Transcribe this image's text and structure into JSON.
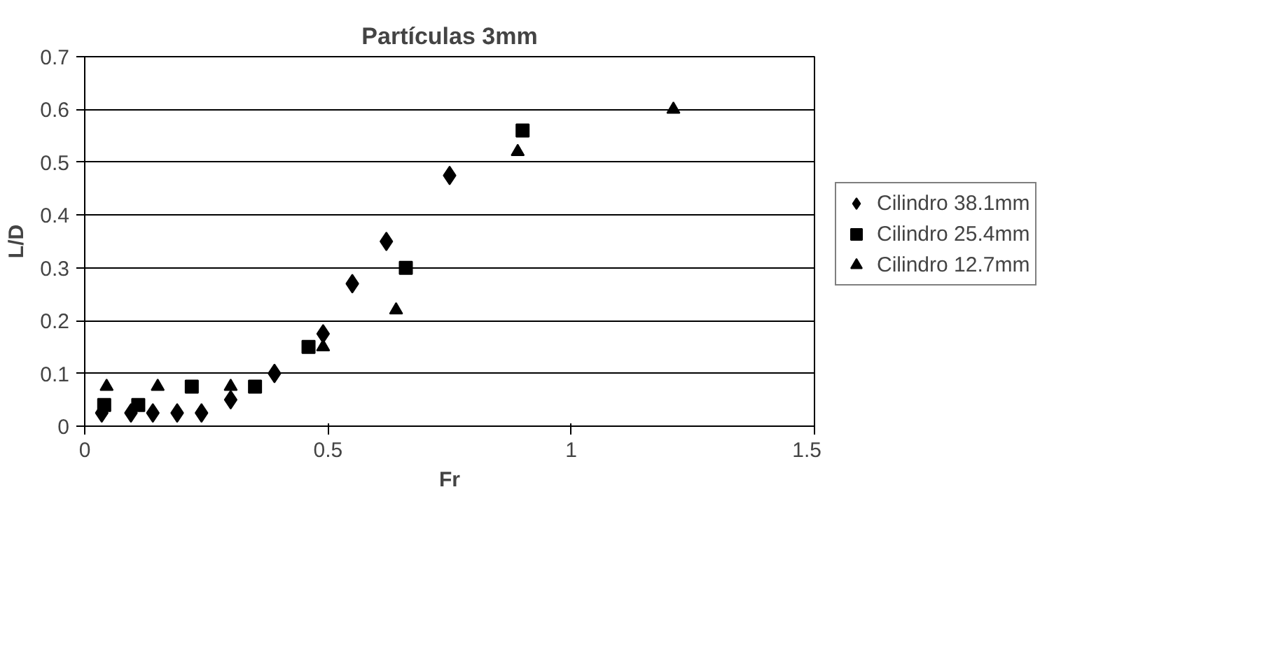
{
  "chart_data": {
    "type": "scatter",
    "title": "Partículas 3mm",
    "xlabel": "Fr",
    "ylabel": "L/D",
    "xlim": [
      0,
      1.5
    ],
    "xticks": [
      0,
      0.5,
      1,
      1.5
    ],
    "ylim": [
      0,
      0.7
    ],
    "yticks": [
      0,
      0.1,
      0.2,
      0.3,
      0.4,
      0.5,
      0.6,
      0.7
    ],
    "grid": "y",
    "legend": "right",
    "series": [
      {
        "name": "Cilindro 38.1mm",
        "color": "#000000",
        "marker": "diamond",
        "x": [
          0.035,
          0.095,
          0.14,
          0.19,
          0.24,
          0.3,
          0.39,
          0.49,
          0.55,
          0.62,
          0.75
        ],
        "values": [
          0.025,
          0.025,
          0.025,
          0.025,
          0.025,
          0.05,
          0.1,
          0.175,
          0.27,
          0.35,
          0.475
        ]
      },
      {
        "name": "Cilindro 25.4mm",
        "color": "#000000",
        "marker": "square",
        "x": [
          0.04,
          0.11,
          0.22,
          0.35,
          0.46,
          0.66,
          0.9
        ],
        "values": [
          0.04,
          0.04,
          0.075,
          0.075,
          0.15,
          0.3,
          0.56
        ]
      },
      {
        "name": "Cilindro 12.7mm",
        "color": "#000000",
        "marker": "triangle",
        "x": [
          0.045,
          0.15,
          0.3,
          0.49,
          0.64,
          0.89,
          1.21
        ],
        "values": [
          0.075,
          0.075,
          0.075,
          0.15,
          0.22,
          0.52,
          0.6
        ]
      }
    ]
  }
}
